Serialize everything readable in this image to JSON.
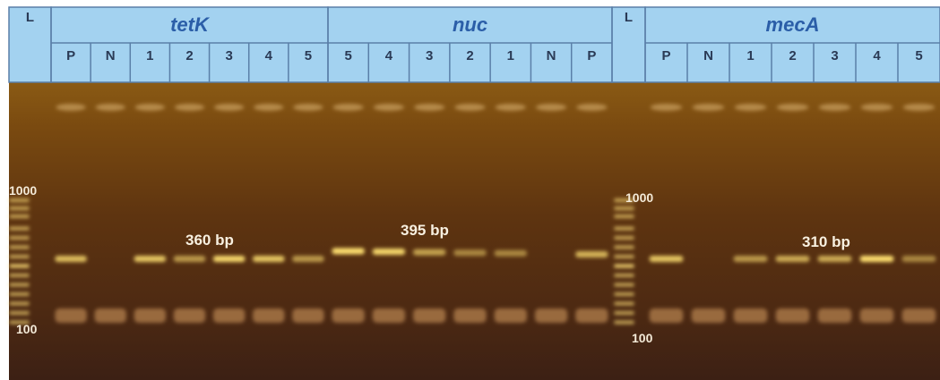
{
  "columns": [
    {
      "label": "L"
    },
    {
      "gene": "tetK",
      "lanes": [
        "P",
        "N",
        "1",
        "2",
        "3",
        "4",
        "5"
      ]
    },
    {
      "gene": "nuc",
      "lanes": [
        "5",
        "4",
        "3",
        "2",
        "1",
        "N",
        "P"
      ]
    },
    {
      "label": "L"
    },
    {
      "gene": "mecA",
      "lanes": [
        "P",
        "N",
        "1",
        "2",
        "3",
        "4",
        "5"
      ]
    }
  ],
  "markers": [
    {
      "high": "1000",
      "low": "100"
    },
    {
      "high": "1000",
      "low": "100"
    }
  ],
  "band_labels": [
    "360 bp",
    "395 bp",
    "310 bp"
  ]
}
